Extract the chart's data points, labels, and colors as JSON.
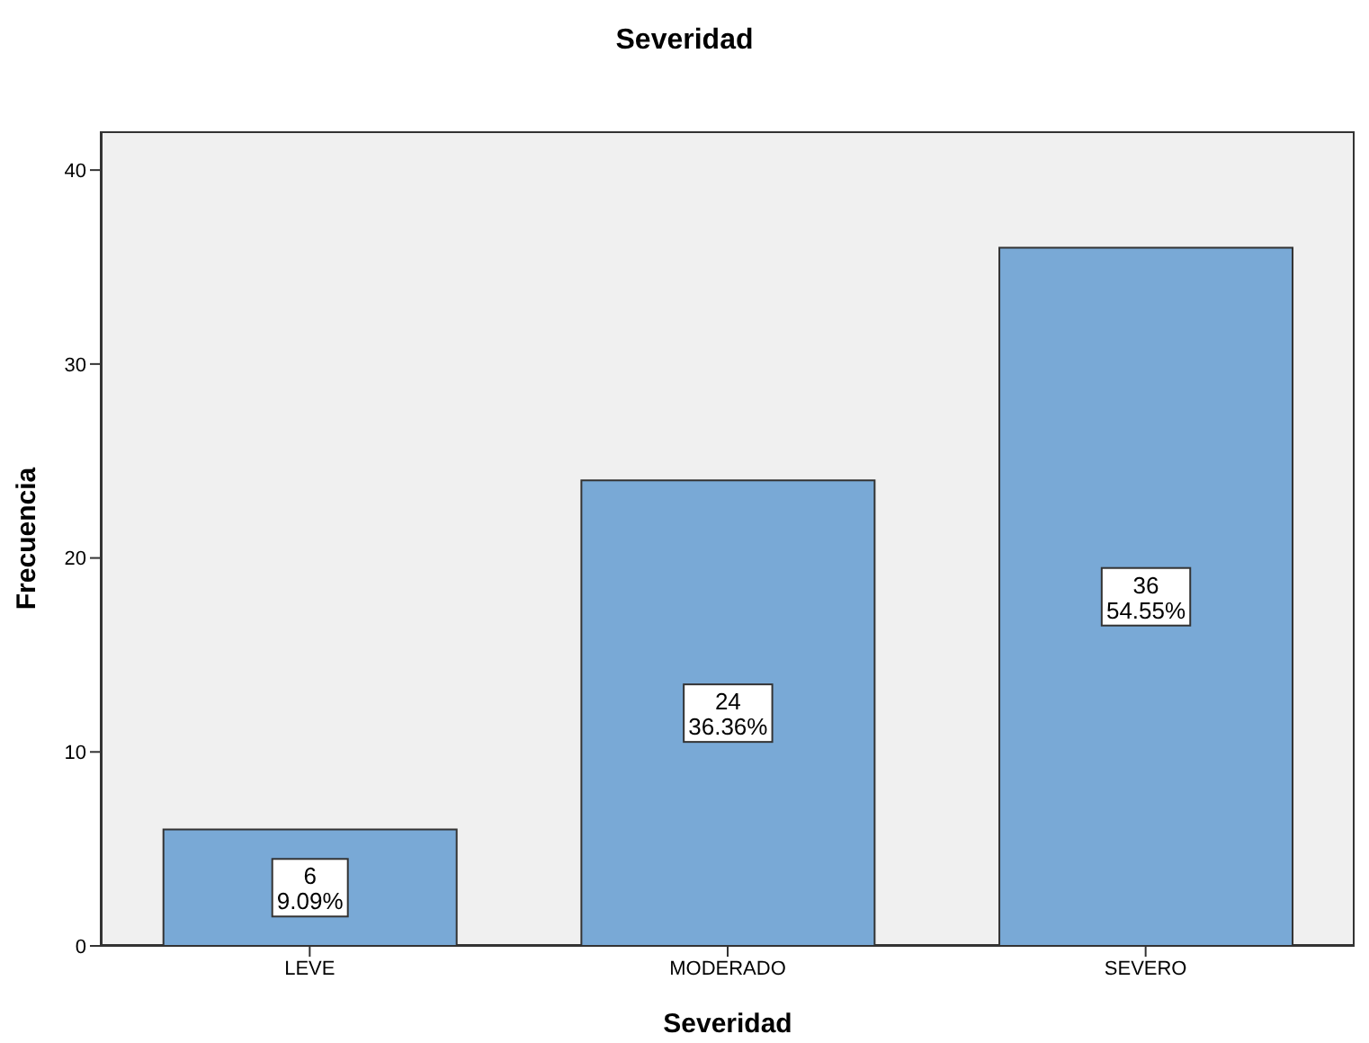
{
  "chart_data": {
    "type": "bar",
    "title": "Severidad",
    "xlabel": "Severidad",
    "ylabel": "Frecuencia",
    "categories": [
      "LEVE",
      "MODERADO",
      "SEVERO"
    ],
    "values": [
      6,
      24,
      36
    ],
    "value_labels": [
      "6\n9.09%",
      "24\n36.36%",
      "36\n54.55%"
    ],
    "color": "#79a9d6",
    "ylim": [
      0,
      42
    ],
    "yticks": [
      0,
      10,
      20,
      30,
      40
    ]
  }
}
